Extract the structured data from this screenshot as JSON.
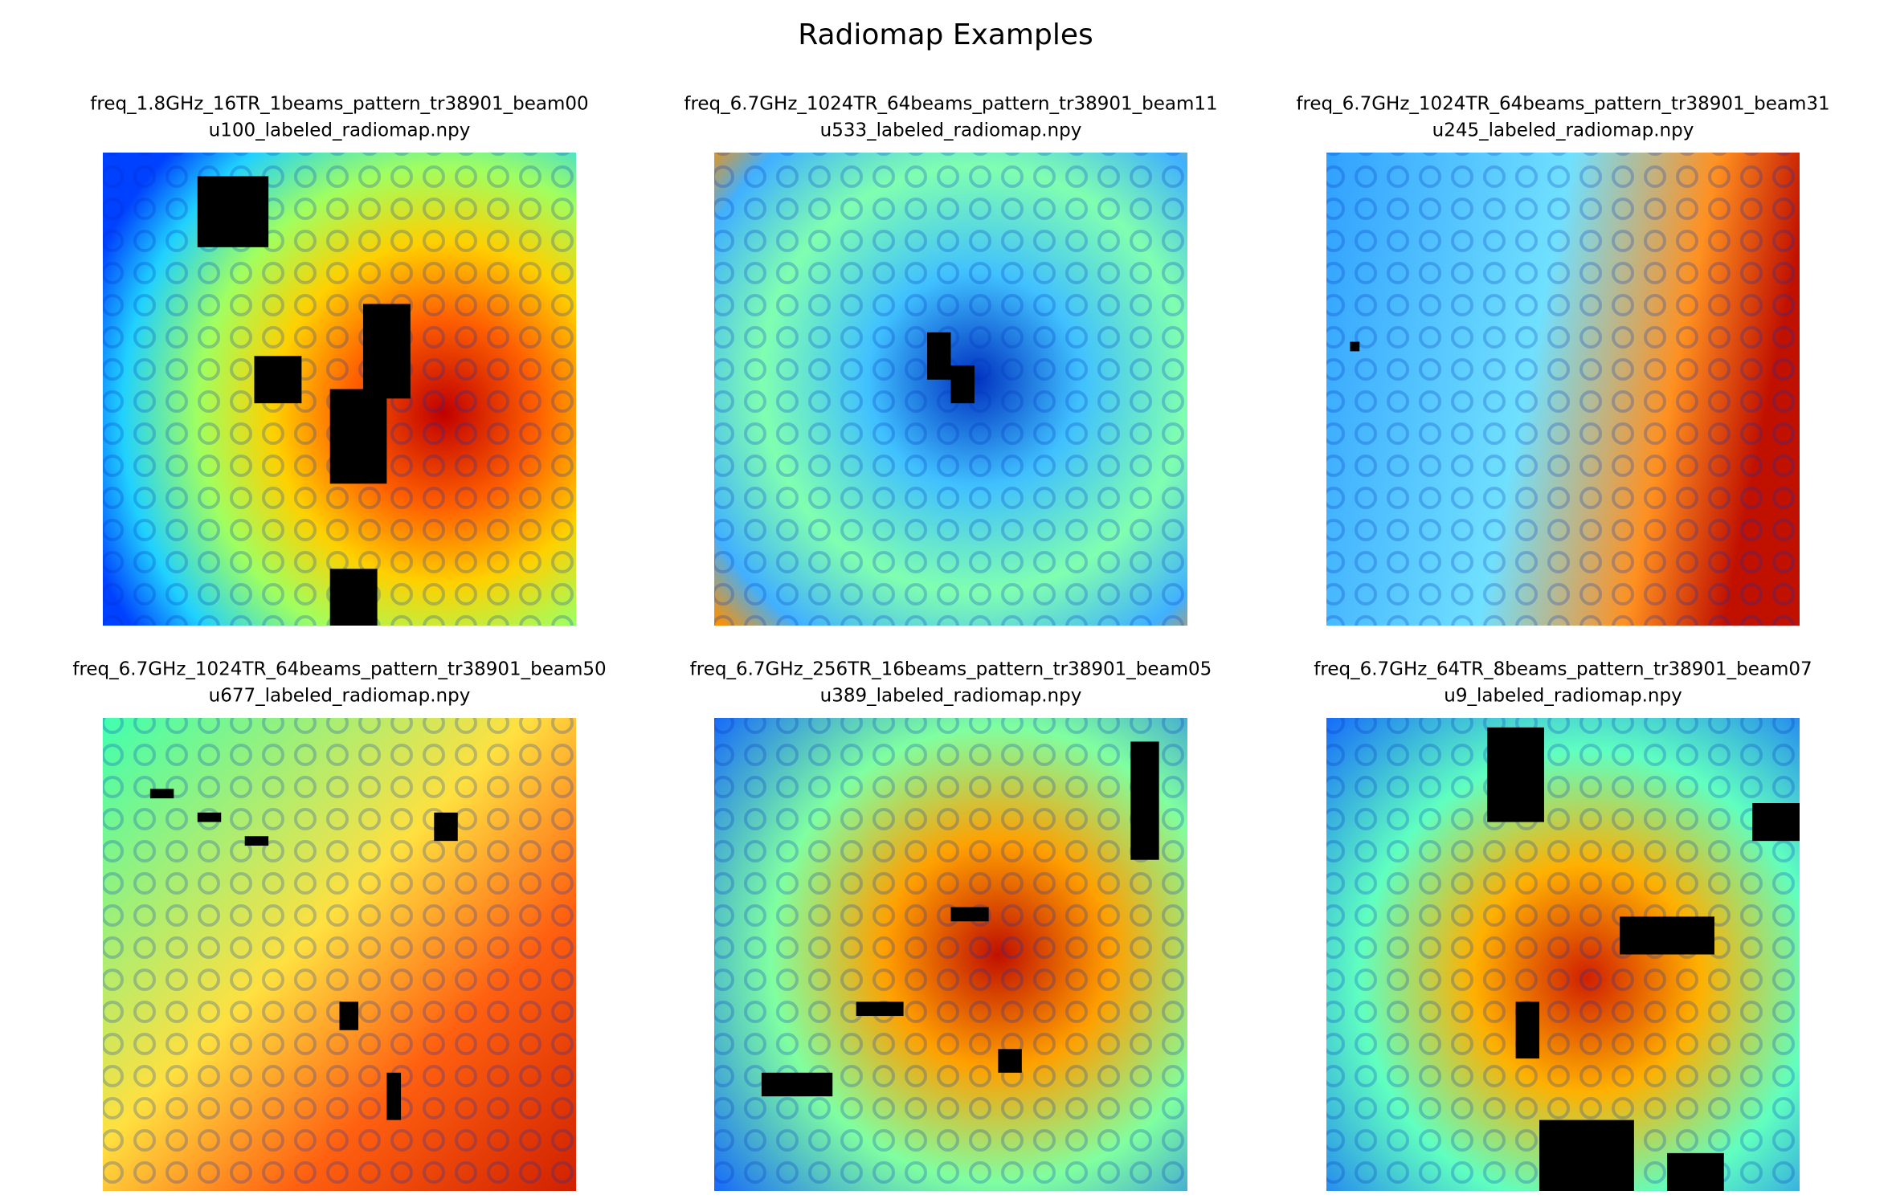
{
  "title": "Radiomap Examples",
  "panels": [
    {
      "title": [
        "freq_1.8GHz_16TR_1beams_pattern_tr38901_beam00",
        "u100_labeled_radiomap.npy"
      ]
    },
    {
      "title": [
        "freq_6.7GHz_1024TR_64beams_pattern_tr38901_beam11",
        "u533_labeled_radiomap.npy"
      ]
    },
    {
      "title": [
        "freq_6.7GHz_1024TR_64beams_pattern_tr38901_beam31",
        "u245_labeled_radiomap.npy"
      ]
    },
    {
      "title": [
        "freq_6.7GHz_1024TR_64beams_pattern_tr38901_beam50",
        "u677_labeled_radiomap.npy"
      ]
    },
    {
      "title": [
        "freq_6.7GHz_256TR_16beams_pattern_tr38901_beam05",
        "u389_labeled_radiomap.npy"
      ]
    },
    {
      "title": [
        "freq_6.7GHz_64TR_8beams_pattern_tr38901_beam07",
        "u9_labeled_radiomap.npy"
      ]
    }
  ]
}
